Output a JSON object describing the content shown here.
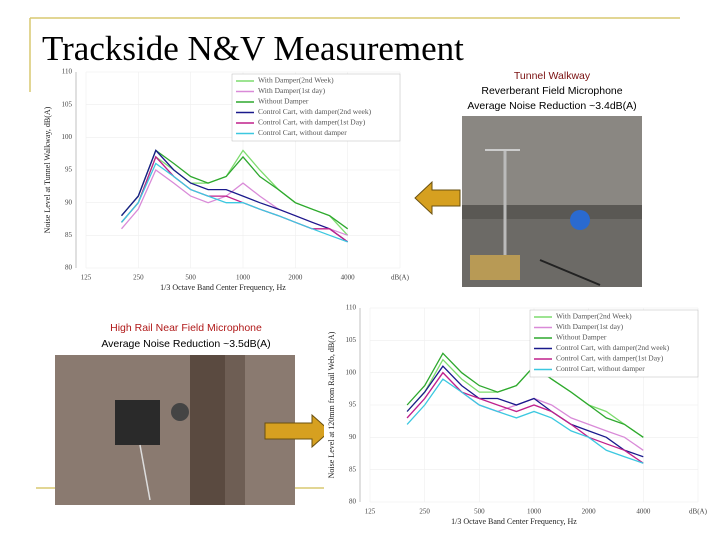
{
  "slide": {
    "title": "Trackside N&V Measurement",
    "top_caption": [
      "Tunnel Walkway",
      "Reverberant Field Microphone",
      "Average Noise Reduction ~3.4dB(A)"
    ],
    "bottom_caption": [
      "High Rail Near Field Microphone",
      "Average Noise Reduction ~3.5dB(A)"
    ]
  },
  "chart_data": [
    {
      "type": "line",
      "xlabel": "1/3 Octave Band Center Frequency, Hz",
      "ylabel": "Noise Level at Tunnel Walkway, dB(A)",
      "x": [
        200,
        250,
        315,
        400,
        500,
        630,
        800,
        1000,
        1250,
        1600,
        2000,
        2500,
        3150,
        4000
      ],
      "log_x": true,
      "grid": true,
      "legend": "upper right",
      "xlim": [
        125,
        8000
      ],
      "ylim": [
        80,
        110
      ],
      "xticks": [
        125,
        250,
        500,
        1000,
        2000,
        4000,
        {
          "value": 8000,
          "label": "dB(A)"
        }
      ],
      "yticks": [
        80,
        85,
        90,
        95,
        100,
        105,
        110
      ],
      "series": [
        {
          "name": "With Damper(2nd Week)",
          "color": "#7ddc6e",
          "values": [
            87,
            90,
            97,
            95,
            93,
            93,
            94,
            98,
            95,
            92,
            90,
            89,
            88,
            85
          ]
        },
        {
          "name": "With Damper(1st day)",
          "color": "#d98ad8",
          "values": [
            86,
            89,
            95,
            93,
            91,
            90,
            91,
            93,
            91,
            89,
            88,
            87,
            86,
            85
          ]
        },
        {
          "name": "Without Damper",
          "color": "#2ea82e",
          "values": [
            88,
            91,
            98,
            96,
            94,
            93,
            94,
            97,
            94,
            92,
            90,
            89,
            88,
            86
          ]
        },
        {
          "name": "Control Cart, with damper(2nd week)",
          "color": "#1a1a8c",
          "values": [
            88,
            91,
            98,
            95,
            93,
            92,
            92,
            91,
            90,
            89,
            88,
            87,
            86,
            84
          ]
        },
        {
          "name": "Control Cart, with damper(1st Day)",
          "color": "#c0208c",
          "values": [
            87,
            90,
            97,
            94,
            92,
            91,
            91,
            90,
            89,
            88,
            87,
            86,
            86,
            84
          ]
        },
        {
          "name": "Control Cart, without damper",
          "color": "#3cc8e0",
          "values": [
            87,
            90,
            96,
            94,
            92,
            91,
            90,
            90,
            89,
            88,
            87,
            86,
            85,
            84
          ]
        }
      ]
    },
    {
      "type": "line",
      "xlabel": "1/3 Octave Band Center Frequency, Hz",
      "ylabel": "Noise Level at 120mm from Rail Web, dB(A)",
      "x": [
        200,
        250,
        315,
        400,
        500,
        630,
        800,
        1000,
        1250,
        1600,
        2000,
        2500,
        3150,
        4000
      ],
      "log_x": true,
      "grid": true,
      "legend": "upper right",
      "xlim": [
        125,
        8000
      ],
      "ylim": [
        80,
        110
      ],
      "xticks": [
        125,
        250,
        500,
        1000,
        2000,
        4000,
        {
          "value": 8000,
          "label": "dB(A)"
        }
      ],
      "yticks": [
        80,
        85,
        90,
        95,
        100,
        105,
        110
      ],
      "series": [
        {
          "name": "With Damper(2nd Week)",
          "color": "#7ddc6e",
          "values": [
            94,
            97,
            102,
            99,
            97,
            97,
            98,
            101,
            99,
            97,
            95,
            94,
            92,
            90
          ]
        },
        {
          "name": "With Damper(1st day)",
          "color": "#d98ad8",
          "values": [
            93,
            96,
            100,
            97,
            95,
            94,
            95,
            96,
            95,
            93,
            92,
            91,
            90,
            88
          ]
        },
        {
          "name": "Without Damper",
          "color": "#2ea82e",
          "values": [
            95,
            98,
            103,
            100,
            98,
            97,
            98,
            101,
            99,
            97,
            95,
            93,
            92,
            90
          ]
        },
        {
          "name": "Control Cart, with damper(2nd week)",
          "color": "#1a1a8c",
          "values": [
            94,
            97,
            101,
            98,
            96,
            96,
            95,
            96,
            94,
            92,
            91,
            90,
            88,
            87
          ]
        },
        {
          "name": "Control Cart, with damper(1st Day)",
          "color": "#c0208c",
          "values": [
            93,
            96,
            100,
            97,
            96,
            95,
            94,
            95,
            94,
            92,
            90,
            89,
            88,
            86
          ]
        },
        {
          "name": "Control Cart, without damper",
          "color": "#3cc8e0",
          "values": [
            92,
            95,
            99,
            97,
            95,
            94,
            93,
            94,
            93,
            91,
            90,
            88,
            87,
            86
          ]
        }
      ]
    }
  ]
}
